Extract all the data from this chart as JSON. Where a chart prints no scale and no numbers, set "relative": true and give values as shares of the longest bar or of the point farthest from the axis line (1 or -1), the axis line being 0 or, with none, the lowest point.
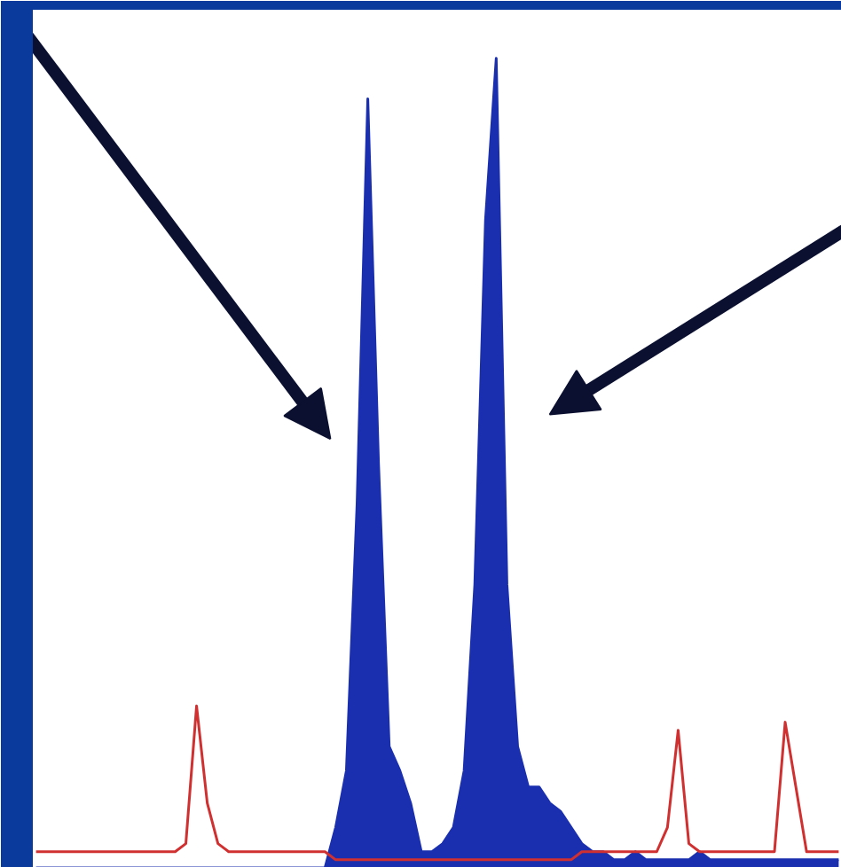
{
  "chart_data": {
    "type": "line",
    "relative": true,
    "grid": false,
    "categories": [
      null,
      null,
      null,
      null,
      null,
      null,
      null,
      null,
      null,
      null,
      null,
      null,
      null,
      null,
      null,
      null,
      null,
      null,
      null,
      null,
      null,
      null,
      null,
      null,
      null,
      null,
      null,
      null,
      null,
      null,
      null,
      null,
      null,
      null,
      null,
      null,
      null,
      null,
      null,
      null,
      null,
      null,
      null,
      null,
      null,
      null,
      null,
      null,
      null,
      null,
      null,
      null,
      null,
      null,
      null,
      null,
      null,
      null,
      null,
      null,
      null,
      null,
      null,
      null,
      null,
      null,
      null,
      null,
      null,
      null,
      null,
      null,
      null,
      null,
      null,
      null
    ],
    "series": [
      {
        "type": "area",
        "color": "#1a2fb0",
        "values": [
          0,
          0,
          0,
          0,
          0,
          0,
          0,
          0,
          0,
          0,
          0,
          0,
          0,
          0,
          0,
          0,
          0,
          0,
          0,
          0,
          0,
          0,
          0,
          0,
          0,
          0,
          0,
          0,
          0.05,
          0.12,
          0.45,
          0.95,
          0.5,
          0.15,
          0.12,
          0.08,
          0.02,
          0.02,
          0.03,
          0.05,
          0.12,
          0.35,
          0.8,
          1.0,
          0.35,
          0.15,
          0.1,
          0.1,
          0.08,
          0.07,
          0.05,
          0.03,
          0.02,
          0.02,
          0.01,
          0.01,
          0.02,
          0.01,
          0.01,
          0.01,
          0.01,
          0.01,
          0.02,
          0.01,
          0.01,
          0.01,
          0.01,
          0.01,
          0.01,
          0.01,
          0.01,
          0.01,
          0.01,
          0.01,
          0.01,
          0.01
        ]
      },
      {
        "color": "#d03030",
        "values": [
          0.02,
          0.02,
          0.02,
          0.02,
          0.02,
          0.02,
          0.02,
          0.02,
          0.02,
          0.02,
          0.02,
          0.02,
          0.02,
          0.02,
          0.03,
          0.2,
          0.08,
          0.03,
          0.02,
          0.02,
          0.02,
          0.02,
          0.02,
          0.02,
          0.02,
          0.02,
          0.02,
          0.02,
          0.01,
          0.01,
          0.01,
          0.01,
          0.01,
          0.01,
          0.01,
          0.01,
          0.01,
          0.01,
          0.01,
          0.01,
          0.01,
          0.01,
          0.01,
          0.01,
          0.01,
          0.01,
          0.01,
          0.01,
          0.01,
          0.01,
          0.01,
          0.02,
          0.02,
          0.02,
          0.02,
          0.02,
          0.02,
          0.02,
          0.02,
          0.05,
          0.17,
          0.03,
          0.02,
          0.02,
          0.02,
          0.02,
          0.02,
          0.02,
          0.02,
          0.02,
          0.18,
          0.1,
          0.02,
          0.02,
          0.02,
          0.02
        ]
      }
    ]
  }
}
